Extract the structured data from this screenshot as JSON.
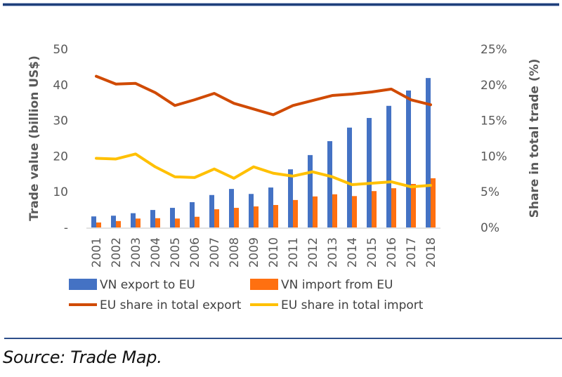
{
  "chart_data": {
    "type": "bar",
    "title": "",
    "xlabel": "",
    "ylabel": "Trade value (billion US$)",
    "y2label": "Share in total trade (%)",
    "ylim": [
      0,
      50
    ],
    "y2lim": [
      0,
      25
    ],
    "yticks": [
      "-",
      "10",
      "20",
      "30",
      "40",
      "50"
    ],
    "y2ticks": [
      "0%",
      "5%",
      "10%",
      "15%",
      "20%",
      "25%"
    ],
    "categories": [
      "2001",
      "2002",
      "2003",
      "2004",
      "2005",
      "2006",
      "2007",
      "2008",
      "2009",
      "2010",
      "2011",
      "2012",
      "2013",
      "2014",
      "2015",
      "2016",
      "2017",
      "2018"
    ],
    "grid": false,
    "legend_position": "bottom",
    "series": [
      {
        "name": "VN export to EU",
        "kind": "bar",
        "axis": "left",
        "color": "#4472c4",
        "values": [
          3.1,
          3.3,
          4.0,
          4.9,
          5.5,
          7.1,
          9.1,
          10.8,
          9.4,
          11.2,
          16.3,
          20.3,
          24.2,
          28.0,
          30.7,
          34.1,
          38.4,
          41.9
        ]
      },
      {
        "name": "VN import from EU",
        "kind": "bar",
        "axis": "left",
        "color": "#ff7010",
        "values": [
          1.4,
          1.8,
          2.5,
          2.6,
          2.5,
          3.0,
          5.1,
          5.5,
          5.9,
          6.3,
          7.7,
          8.7,
          9.3,
          8.8,
          10.2,
          11.0,
          12.2,
          13.8
        ]
      },
      {
        "name": "EU share in total export",
        "kind": "line",
        "axis": "right",
        "color": "#d04a02",
        "values": [
          21.2,
          20.1,
          20.2,
          18.9,
          17.1,
          17.9,
          18.8,
          17.4,
          16.6,
          15.8,
          17.1,
          17.8,
          18.5,
          18.7,
          19.0,
          19.4,
          17.9,
          17.2
        ]
      },
      {
        "name": "EU share in total import",
        "kind": "line",
        "axis": "right",
        "color": "#ffc000",
        "values": [
          9.7,
          9.6,
          10.3,
          8.5,
          7.1,
          7.0,
          8.2,
          6.9,
          8.5,
          7.6,
          7.2,
          7.8,
          7.1,
          6.0,
          6.2,
          6.4,
          5.7,
          5.9
        ]
      }
    ]
  },
  "source_note": "Source: Trade Map."
}
